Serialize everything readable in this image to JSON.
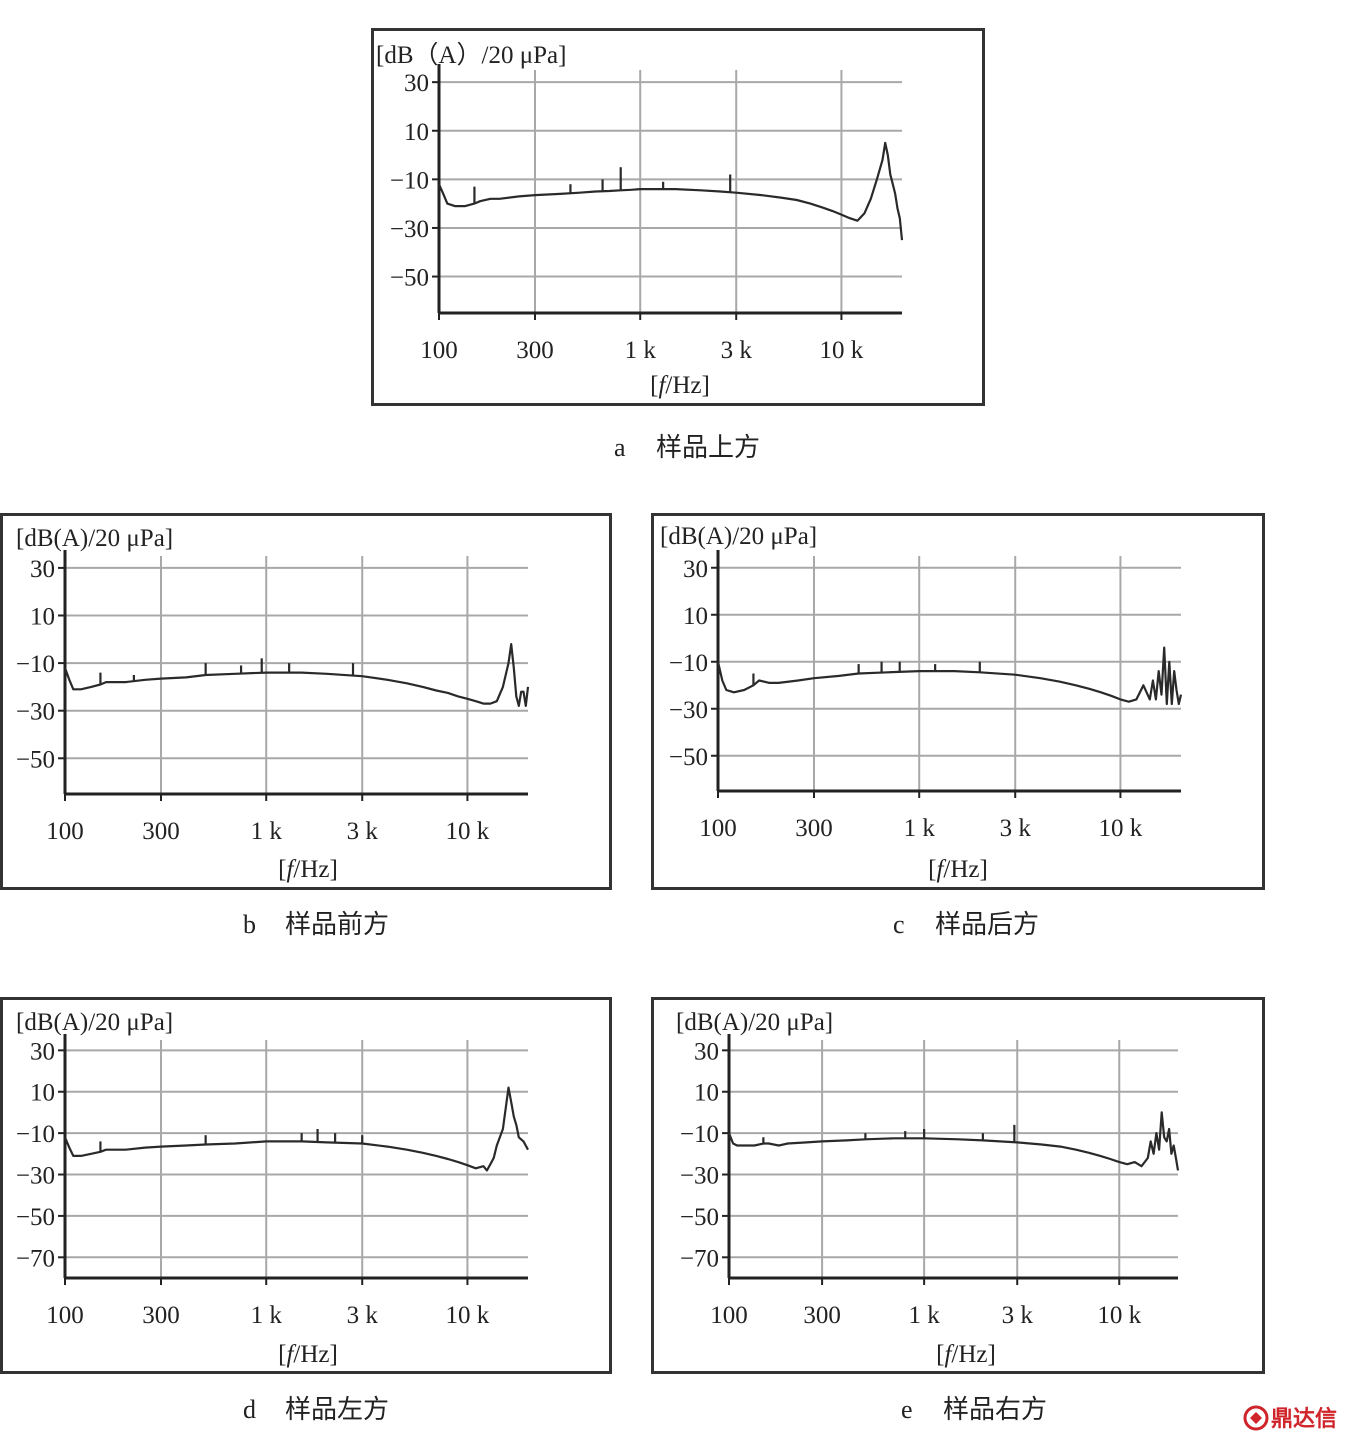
{
  "chart_data": [
    {
      "id": "a",
      "type": "line",
      "caption": {
        "letter": "a",
        "text": "样品上方"
      },
      "ylabel": "[dB（A）/20 μPa]",
      "xlabel": "[f/Hz]",
      "x_scale": "log",
      "xlim": [
        100,
        20000
      ],
      "ylim": [
        -65,
        35
      ],
      "yticks": [
        30,
        10,
        -10,
        -30,
        -50
      ],
      "xticks": [
        {
          "value": 100,
          "label": "100"
        },
        {
          "value": 300,
          "label": "300"
        },
        {
          "value": 1000,
          "label": "1 k"
        },
        {
          "value": 3000,
          "label": "3 k"
        },
        {
          "value": 10000,
          "label": "10 k"
        }
      ],
      "grid": true,
      "series": [
        {
          "x": [
            100,
            105,
            110,
            120,
            135,
            150,
            160,
            180,
            200,
            250,
            300,
            400,
            500,
            600,
            700,
            800,
            900,
            1000,
            1200,
            1500,
            2000,
            2500,
            3000,
            4000,
            5000,
            6000,
            7000,
            8000,
            9000,
            10000,
            11000,
            12000,
            13000,
            14000,
            15000,
            16000,
            16500,
            17000,
            17500,
            18000,
            18500,
            19000,
            19500,
            20000
          ],
          "y": [
            -12,
            -16,
            -20,
            -21,
            -21,
            -20,
            -19,
            -18,
            -18,
            -17,
            -16.5,
            -16,
            -15.5,
            -15,
            -14.8,
            -14.5,
            -14.3,
            -14,
            -14,
            -14,
            -14.5,
            -15,
            -15.5,
            -16.5,
            -17.5,
            -18.5,
            -20,
            -21.5,
            -23,
            -24.5,
            -26,
            -27,
            -24,
            -18,
            -10,
            -2,
            5,
            0,
            -8,
            -12,
            -16,
            -22,
            -26,
            -35
          ],
          "spikes": [
            {
              "x": 150,
              "y": -13
            },
            {
              "x": 450,
              "y": -12
            },
            {
              "x": 650,
              "y": -10
            },
            {
              "x": 800,
              "y": -5
            },
            {
              "x": 1300,
              "y": -11
            },
            {
              "x": 2800,
              "y": -8
            }
          ]
        }
      ]
    },
    {
      "id": "b",
      "type": "line",
      "caption": {
        "letter": "b",
        "text": "样品前方"
      },
      "ylabel": "[dB(A)/20 μPa]",
      "xlabel": "[f/Hz]",
      "x_scale": "log",
      "xlim": [
        100,
        20000
      ],
      "ylim": [
        -65,
        35
      ],
      "yticks": [
        30,
        10,
        -10,
        -30,
        -50
      ],
      "xticks": [
        {
          "value": 100,
          "label": "100"
        },
        {
          "value": 300,
          "label": "300"
        },
        {
          "value": 1000,
          "label": "1 k"
        },
        {
          "value": 3000,
          "label": "3 k"
        },
        {
          "value": 10000,
          "label": "10 k"
        }
      ],
      "grid": true,
      "series": [
        {
          "x": [
            100,
            105,
            110,
            120,
            135,
            150,
            160,
            180,
            200,
            250,
            300,
            400,
            500,
            700,
            1000,
            1500,
            2000,
            3000,
            4000,
            5000,
            6000,
            7000,
            8000,
            9000,
            10000,
            11000,
            12000,
            13000,
            14000,
            15000,
            16000,
            16500,
            17000,
            17500,
            18000,
            18500,
            19000,
            19500,
            20000
          ],
          "y": [
            -12,
            -17,
            -21,
            -21,
            -20,
            -19,
            -18,
            -18,
            -18,
            -17,
            -16.5,
            -16,
            -15,
            -14.5,
            -14,
            -14,
            -14.5,
            -15.5,
            -17,
            -18.5,
            -20,
            -21.5,
            -22.5,
            -24,
            -25,
            -26,
            -27,
            -27,
            -26,
            -20,
            -10,
            -2,
            -12,
            -24,
            -28,
            -22,
            -22,
            -28,
            -20
          ],
          "spikes": [
            {
              "x": 150,
              "y": -14
            },
            {
              "x": 220,
              "y": -15
            },
            {
              "x": 500,
              "y": -10
            },
            {
              "x": 750,
              "y": -11
            },
            {
              "x": 950,
              "y": -8
            },
            {
              "x": 1300,
              "y": -10
            },
            {
              "x": 2700,
              "y": -10
            }
          ]
        }
      ]
    },
    {
      "id": "c",
      "type": "line",
      "caption": {
        "letter": "c",
        "text": "样品后方"
      },
      "ylabel": "[dB(A)/20 μPa]",
      "xlabel": "[f/Hz]",
      "x_scale": "log",
      "xlim": [
        100,
        20000
      ],
      "ylim": [
        -65,
        35
      ],
      "yticks": [
        30,
        10,
        -10,
        -30,
        -50
      ],
      "xticks": [
        {
          "value": 100,
          "label": "100"
        },
        {
          "value": 300,
          "label": "300"
        },
        {
          "value": 1000,
          "label": "1 k"
        },
        {
          "value": 3000,
          "label": "3 k"
        },
        {
          "value": 10000,
          "label": "10 k"
        }
      ],
      "grid": true,
      "series": [
        {
          "x": [
            100,
            105,
            110,
            120,
            135,
            150,
            160,
            180,
            200,
            250,
            300,
            400,
            500,
            700,
            1000,
            1500,
            2000,
            3000,
            4000,
            5000,
            6000,
            7000,
            8000,
            9000,
            10000,
            11000,
            12000,
            13000,
            14000,
            14500,
            15000,
            15500,
            16000,
            16500,
            17000,
            17500,
            18000,
            18500,
            19000,
            19500,
            20000
          ],
          "y": [
            -10,
            -18,
            -22,
            -23,
            -22,
            -20,
            -18,
            -19,
            -19,
            -18,
            -17,
            -16,
            -15,
            -14.5,
            -14,
            -14,
            -14.5,
            -15.5,
            -17,
            -18.5,
            -20,
            -21.5,
            -23,
            -24.5,
            -26,
            -27,
            -26,
            -20,
            -26,
            -18,
            -26,
            -14,
            -24,
            -4,
            -28,
            -10,
            -28,
            -14,
            -22,
            -28,
            -24
          ],
          "spikes": [
            {
              "x": 150,
              "y": -15
            },
            {
              "x": 500,
              "y": -11
            },
            {
              "x": 650,
              "y": -10
            },
            {
              "x": 800,
              "y": -10
            },
            {
              "x": 1200,
              "y": -11
            },
            {
              "x": 2000,
              "y": -10
            }
          ]
        }
      ]
    },
    {
      "id": "d",
      "type": "line",
      "caption": {
        "letter": "d",
        "text": "样品左方"
      },
      "ylabel": "[dB(A)/20 μPa]",
      "xlabel": "[f/Hz]",
      "x_scale": "log",
      "xlim": [
        100,
        20000
      ],
      "ylim": [
        -80,
        35
      ],
      "yticks": [
        30,
        10,
        -10,
        -30,
        -50,
        -70
      ],
      "xticks": [
        {
          "value": 100,
          "label": "100"
        },
        {
          "value": 300,
          "label": "300"
        },
        {
          "value": 1000,
          "label": "1 k"
        },
        {
          "value": 3000,
          "label": "3 k"
        },
        {
          "value": 10000,
          "label": "10 k"
        }
      ],
      "grid": true,
      "series": [
        {
          "x": [
            100,
            105,
            110,
            120,
            135,
            150,
            160,
            180,
            200,
            250,
            300,
            400,
            500,
            700,
            1000,
            1500,
            2000,
            3000,
            4000,
            5000,
            6000,
            7000,
            8000,
            9000,
            10000,
            11000,
            12000,
            12500,
            13000,
            13500,
            14000,
            15000,
            16000,
            16500,
            17000,
            17500,
            18000,
            19000,
            20000
          ],
          "y": [
            -12,
            -17,
            -21,
            -21,
            -20,
            -19,
            -18,
            -18,
            -18,
            -17,
            -16.5,
            -16,
            -15.5,
            -15,
            -14,
            -14,
            -14.5,
            -15,
            -16.5,
            -18,
            -19.5,
            -21,
            -22.5,
            -24,
            -25.5,
            -27,
            -26,
            -28,
            -25,
            -22,
            -16,
            -8,
            12,
            5,
            -2,
            -6,
            -12,
            -14,
            -18
          ],
          "spikes": [
            {
              "x": 150,
              "y": -14
            },
            {
              "x": 500,
              "y": -11
            },
            {
              "x": 1500,
              "y": -10
            },
            {
              "x": 1800,
              "y": -8
            },
            {
              "x": 2200,
              "y": -10
            },
            {
              "x": 3000,
              "y": -11
            }
          ]
        }
      ]
    },
    {
      "id": "e",
      "type": "line",
      "caption": {
        "letter": "e",
        "text": "样品右方"
      },
      "ylabel": "[dB(A)/20 μPa]",
      "xlabel": "[f/Hz]",
      "x_scale": "log",
      "xlim": [
        100,
        20000
      ],
      "ylim": [
        -80,
        35
      ],
      "yticks": [
        30,
        10,
        -10,
        -30,
        -50,
        -70
      ],
      "xticks": [
        {
          "value": 100,
          "label": "100"
        },
        {
          "value": 300,
          "label": "300"
        },
        {
          "value": 1000,
          "label": "1 k"
        },
        {
          "value": 3000,
          "label": "3 k"
        },
        {
          "value": 10000,
          "label": "10 k"
        }
      ],
      "grid": true,
      "series": [
        {
          "x": [
            100,
            105,
            110,
            120,
            135,
            150,
            160,
            180,
            200,
            250,
            300,
            400,
            500,
            700,
            1000,
            1500,
            2000,
            3000,
            4000,
            5000,
            6000,
            7000,
            8000,
            9000,
            10000,
            11000,
            12000,
            13000,
            14000,
            14500,
            15000,
            15500,
            16000,
            16500,
            17000,
            17500,
            18000,
            18500,
            19000,
            19500,
            20000
          ],
          "y": [
            -10,
            -15,
            -16,
            -16,
            -16,
            -15,
            -15,
            -16,
            -15,
            -14.5,
            -14,
            -13.5,
            -13,
            -12.5,
            -12.5,
            -13,
            -13.5,
            -14.5,
            -15.5,
            -16.5,
            -18,
            -19.5,
            -21,
            -22.5,
            -24,
            -25,
            -24,
            -26,
            -22,
            -14,
            -20,
            -10,
            -18,
            0,
            -12,
            -14,
            -8,
            -20,
            -16,
            -22,
            -28
          ],
          "spikes": [
            {
              "x": 150,
              "y": -12
            },
            {
              "x": 500,
              "y": -10
            },
            {
              "x": 800,
              "y": -9
            },
            {
              "x": 1000,
              "y": -8
            },
            {
              "x": 2000,
              "y": -10
            },
            {
              "x": 2900,
              "y": -6
            }
          ]
        }
      ]
    }
  ],
  "watermark": {
    "text": "鼎达信"
  },
  "colors": {
    "trace": "#2a2a2a",
    "grid": "#a8a8a8",
    "frame": "#333333",
    "watermark": "#d0242b"
  }
}
